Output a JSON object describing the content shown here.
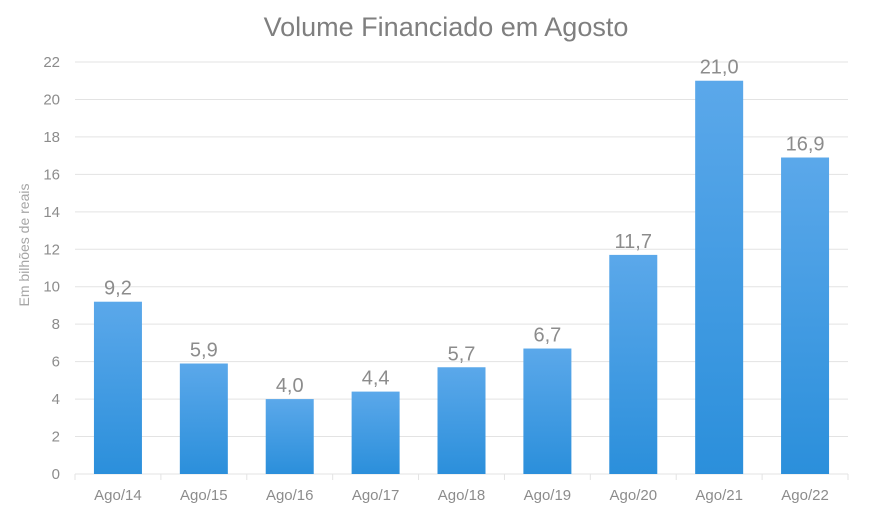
{
  "chart_data": {
    "type": "bar",
    "title": "Volume Financiado em Agosto",
    "xlabel": "",
    "ylabel": "Em bilhões de reais",
    "categories": [
      "Ago/14",
      "Ago/15",
      "Ago/16",
      "Ago/17",
      "Ago/18",
      "Ago/19",
      "Ago/20",
      "Ago/21",
      "Ago/22"
    ],
    "values": [
      9.2,
      5.9,
      4.0,
      4.4,
      5.7,
      6.7,
      11.7,
      21.0,
      16.9
    ],
    "data_labels": [
      "9,2",
      "5,9",
      "4,0",
      "4,4",
      "5,7",
      "6,7",
      "11,7",
      "21,0",
      "16,9"
    ],
    "ylim": [
      0,
      22
    ],
    "yticks": [
      0,
      2,
      4,
      6,
      8,
      10,
      12,
      14,
      16,
      18,
      20,
      22
    ],
    "grid": true,
    "legend": "none",
    "colors": {
      "bar_top": "#5ba8ea",
      "bar_bottom": "#2b8fdb",
      "grid": "#e3e3e3",
      "text": "#8c8c8c",
      "title": "#7f7f7f"
    }
  }
}
